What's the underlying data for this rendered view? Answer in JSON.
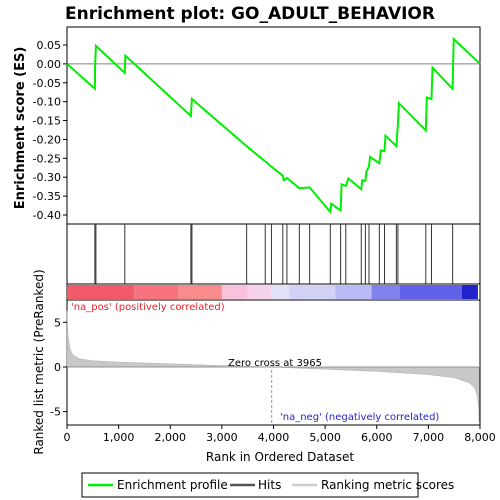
{
  "chart_data": {
    "type": "line",
    "title": "Enrichment plot: GO_ADULT_BEHAVIOR",
    "xlabel": "Rank in Ordered Dataset",
    "ylabel_top": "Enrichment score (ES)",
    "ylabel_bottom": "Ranked list metric (PreRanked)",
    "x_range": [
      0,
      8000
    ],
    "es_ylim": [
      -0.4,
      0.05
    ],
    "metric_ylim": [
      -6.5,
      7.5
    ],
    "x_ticks": [
      0,
      1000,
      2000,
      3000,
      4000,
      5000,
      6000,
      7000,
      8000
    ],
    "x_tick_labels": [
      "0",
      "1,000",
      "2,000",
      "3,000",
      "4,000",
      "5,000",
      "6,000",
      "7,000",
      "8,000"
    ],
    "es_ticks": [
      0.05,
      0.0,
      -0.05,
      -0.1,
      -0.15,
      -0.2,
      -0.25,
      -0.3,
      -0.35,
      -0.4
    ],
    "es_tick_labels": [
      "0.05",
      "0.00",
      "-0.05",
      "-0.10",
      "-0.15",
      "-0.20",
      "-0.25",
      "-0.30",
      "-0.35",
      "-0.40"
    ],
    "metric_ticks": [
      5,
      0,
      -5
    ],
    "metric_tick_labels": [
      "5",
      "0",
      "-5"
    ],
    "es_color": "#00ee00",
    "enrichment_profile": {
      "x": [
        0,
        540,
        545,
        560,
        1120,
        1130,
        2400,
        2420,
        3480,
        3840,
        3960,
        4180,
        4200,
        4260,
        4500,
        4700,
        5100,
        5120,
        5300,
        5320,
        5400,
        5450,
        5700,
        5720,
        5780,
        5800,
        5850,
        5870,
        6050,
        6080,
        6150,
        6170,
        6380,
        6395,
        6410,
        6430,
        6950,
        6970,
        7060,
        7080,
        7470,
        7490,
        8000
      ],
      "y": [
        0.0,
        -0.066,
        -0.005,
        0.048,
        -0.024,
        0.022,
        -0.138,
        -0.093,
        -0.218,
        -0.258,
        -0.272,
        -0.296,
        -0.308,
        -0.302,
        -0.329,
        -0.327,
        -0.392,
        -0.37,
        -0.388,
        -0.319,
        -0.323,
        -0.303,
        -0.332,
        -0.308,
        -0.31,
        -0.285,
        -0.272,
        -0.246,
        -0.263,
        -0.229,
        -0.231,
        -0.19,
        -0.218,
        -0.188,
        -0.16,
        -0.104,
        -0.176,
        -0.089,
        -0.093,
        -0.01,
        -0.066,
        0.066,
        0.0
      ]
    },
    "hits": [
      540,
      560,
      1120,
      2400,
      2420,
      3480,
      3840,
      3960,
      4180,
      4260,
      4500,
      4700,
      5100,
      5300,
      5400,
      5700,
      5780,
      5850,
      6050,
      6150,
      6380,
      6410,
      6950,
      7060,
      7470
    ],
    "heatmap_segments": [
      {
        "from": 0,
        "to": 1300,
        "color": "#f25a6a"
      },
      {
        "from": 1300,
        "to": 2150,
        "color": "#f5727e"
      },
      {
        "from": 2150,
        "to": 3000,
        "color": "#f88c8c"
      },
      {
        "from": 3000,
        "to": 3500,
        "color": "#f8c2dc"
      },
      {
        "from": 3500,
        "to": 3950,
        "color": "#f6d2ea"
      },
      {
        "from": 3950,
        "to": 4300,
        "color": "#e2e2f6"
      },
      {
        "from": 4300,
        "to": 5200,
        "color": "#d2d2f6"
      },
      {
        "from": 5200,
        "to": 5900,
        "color": "#babaf4"
      },
      {
        "from": 5900,
        "to": 6450,
        "color": "#8282ec"
      },
      {
        "from": 6450,
        "to": 7650,
        "color": "#6060e8"
      },
      {
        "from": 7650,
        "to": 7960,
        "color": "#2222cc"
      }
    ],
    "metric_curve": {
      "x": [
        0,
        20,
        60,
        120,
        250,
        500,
        1000,
        2000,
        3000,
        3965,
        5000,
        6000,
        7000,
        7500,
        7800,
        7900,
        7950,
        7975,
        7985
      ],
      "y": [
        6.3,
        3.6,
        2.0,
        1.3,
        0.9,
        0.7,
        0.55,
        0.35,
        0.15,
        0.0,
        -0.25,
        -0.5,
        -0.85,
        -1.2,
        -1.8,
        -2.4,
        -3.3,
        -4.8,
        -6.2
      ]
    },
    "annotations": {
      "pos_label": "'na_pos' (positively correlated)",
      "neg_label": "'na_neg' (negatively correlated)",
      "zero_cross": "Zero cross at 3965",
      "zero_cross_x": 3965
    },
    "legend": [
      {
        "label": "Enrichment profile",
        "color": "#00ee00"
      },
      {
        "label": "Hits",
        "color": "#555555"
      },
      {
        "label": "Ranking metric scores",
        "color": "#cccccc"
      }
    ],
    "legend_placement": "bottom",
    "grid": false
  }
}
